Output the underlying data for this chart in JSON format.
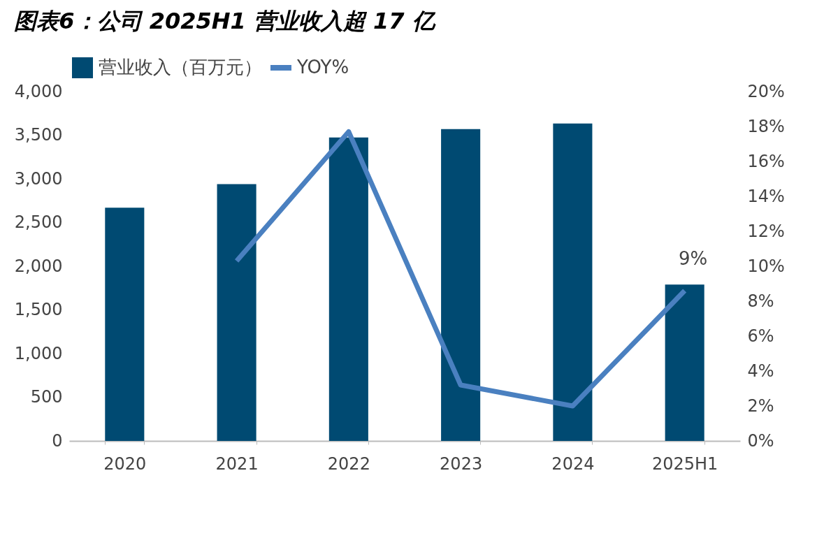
{
  "chart_data": {
    "type": "bar",
    "title": "图表6：公司 2025H1 营业收入超 17 亿",
    "categories": [
      "2020",
      "2021",
      "2022",
      "2023",
      "2024",
      "2025H1"
    ],
    "series": [
      {
        "name": "营业收入（百万元）",
        "color": "#004a72",
        "values": [
          2670,
          2940,
          3475,
          3570,
          3635,
          1790
        ]
      },
      {
        "name": "YOY%",
        "type": "line",
        "axis": "y2",
        "color": "#4a80c0",
        "values": [
          null,
          10.3,
          17.7,
          3.2,
          2.0,
          8.6
        ],
        "value_labels": [
          null,
          null,
          null,
          null,
          null,
          "9%"
        ]
      }
    ],
    "ylim": [
      0,
      4000
    ],
    "yticks": [
      0,
      500,
      {
        "value": 1000,
        "label": "1,000"
      },
      {
        "value": 1500,
        "label": "1,500"
      },
      {
        "value": 2000,
        "label": "2,000"
      },
      {
        "value": 2500,
        "label": "2,500"
      },
      {
        "value": 3000,
        "label": "3,000"
      },
      {
        "value": 3500,
        "label": "3,500"
      },
      {
        "value": 4000,
        "label": "4,000"
      }
    ],
    "y2lim": [
      0,
      20
    ],
    "y2ticks": [
      {
        "value": 0,
        "label": "0%"
      },
      {
        "value": 2,
        "label": "2%"
      },
      {
        "value": 4,
        "label": "4%"
      },
      {
        "value": 6,
        "label": "6%"
      },
      {
        "value": 8,
        "label": "8%"
      },
      {
        "value": 10,
        "label": "10%"
      },
      {
        "value": 12,
        "label": "12%"
      },
      {
        "value": 14,
        "label": "14%"
      },
      {
        "value": 16,
        "label": "16%"
      },
      {
        "value": 18,
        "label": "18%"
      },
      {
        "value": 20,
        "label": "20%"
      }
    ],
    "legend": "top",
    "grid": false
  }
}
